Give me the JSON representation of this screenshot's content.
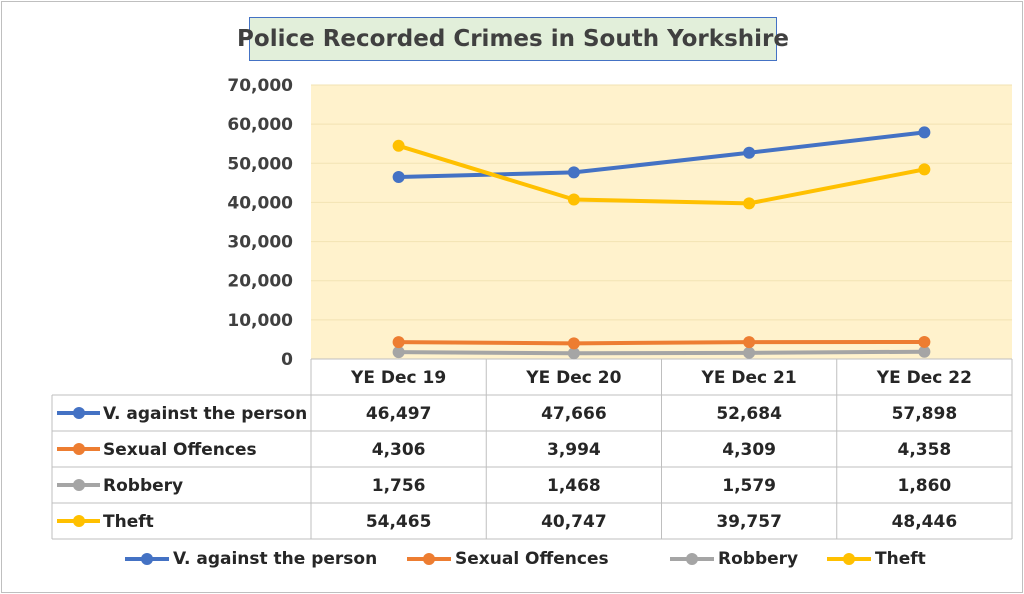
{
  "chart_data": {
    "type": "line",
    "title": "Police Recorded Crimes in South Yorkshire",
    "categories": [
      "YE Dec 19",
      "YE Dec 20",
      "YE Dec 21",
      "YE Dec 22"
    ],
    "ylim": [
      0,
      70000
    ],
    "yticks": [
      "0",
      "10,000",
      "20,000",
      "30,000",
      "40,000",
      "50,000",
      "60,000",
      "70,000"
    ],
    "grid": true,
    "legend": "bottom",
    "data_table": true,
    "plot_background": "#fff2cc",
    "series": [
      {
        "name": "V. against the person",
        "color": "#4472c4",
        "values": [
          46497,
          47666,
          52684,
          57898
        ],
        "labels": [
          "46,497",
          "47,666",
          "52,684",
          "57,898"
        ]
      },
      {
        "name": "Sexual Offences",
        "color": "#ed7d31",
        "values": [
          4306,
          3994,
          4309,
          4358
        ],
        "labels": [
          "4,306",
          "3,994",
          "4,309",
          "4,358"
        ]
      },
      {
        "name": "Robbery",
        "color": "#a5a5a5",
        "values": [
          1756,
          1468,
          1579,
          1860
        ],
        "labels": [
          "1,756",
          "1,468",
          "1,579",
          "1,860"
        ]
      },
      {
        "name": "Theft",
        "color": "#ffc000",
        "values": [
          54465,
          40747,
          39757,
          48446
        ],
        "labels": [
          "54,465",
          "40,747",
          "39,757",
          "48,446"
        ]
      }
    ]
  }
}
